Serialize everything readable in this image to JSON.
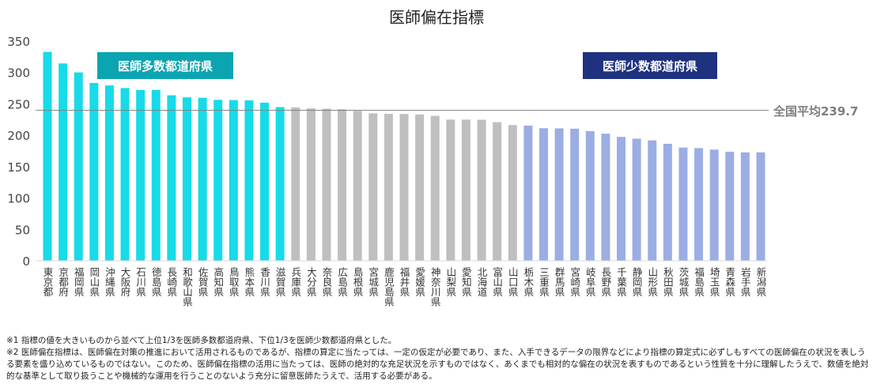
{
  "chart_data": {
    "type": "bar",
    "title": "医師偏在指標",
    "ylim": [
      0,
      350
    ],
    "yticks": [
      0,
      50,
      100,
      150,
      200,
      250,
      300,
      350
    ],
    "categories": [
      "東京都",
      "京都府",
      "福岡県",
      "岡山県",
      "沖縄県",
      "大阪府",
      "石川県",
      "徳島県",
      "長崎県",
      "和歌山県",
      "佐賀県",
      "高知県",
      "鳥取県",
      "熊本県",
      "香川県",
      "滋賀県",
      "兵庫県",
      "大分県",
      "奈良県",
      "広島県",
      "島根県",
      "宮城県",
      "鹿児島県",
      "福井県",
      "愛媛県",
      "神奈川県",
      "山梨県",
      "愛知県",
      "北海道",
      "富山県",
      "山口県",
      "栃木県",
      "三重県",
      "群馬県",
      "宮崎県",
      "岐阜県",
      "長野県",
      "千葉県",
      "静岡県",
      "山形県",
      "秋田県",
      "茨城県",
      "福島県",
      "埼玉県",
      "青森県",
      "岩手県",
      "新潟県"
    ],
    "values": [
      332.8,
      314.4,
      300.1,
      283.2,
      279.3,
      275.2,
      272.2,
      272.2,
      263.7,
      260.3,
      259.7,
      256.4,
      256.0,
      255.5,
      251.9,
      244.8,
      244.4,
      242.8,
      242.3,
      241.4,
      238.7,
      234.9,
      234.1,
      233.8,
      233.1,
      230.9,
      224.9,
      224.9,
      224.7,
      220.9,
      216.2,
      215.3,
      211.2,
      210.9,
      210.4,
      206.6,
      202.5,
      197.3,
      194.5,
      191.8,
      186.3,
      180.3,
      179.5,
      177.1,
      173.6,
      172.7,
      172.7
    ],
    "groups": {
      "many_count": 16,
      "few_count": 16
    },
    "colors": {
      "many": "#17dbe8",
      "middle": "#bfbfbf",
      "few": "#9badE3",
      "avg_line": "#808080"
    },
    "average": {
      "value": 239.7,
      "label": "全国平均239.7"
    },
    "annotations": {
      "many": "医師多数都道府県",
      "few": "医師少数都道府県"
    },
    "grid": false
  },
  "notes": [
    "※1 指標の値を大きいものから並べて上位1/3を医師多数都道府県、下位1/3を医師少数都道府県とした。",
    "※2 医師偏在指標は、医師偏在対策の推進において活用されるものであるが、指標の算定に当たっては、一定の仮定が必要であり、また、入手できるデータの限界などにより指標の算定式に必ずしもすべての医師偏在の状況を表しうる要素を盛り込めているものではない。このため、医師偏在指標の活用に当たっては、医師の絶対的な充足状況を示すものではなく、あくまでも相対的な偏在の状況を表すものであるという性質を十分に理解したうえで、数値を絶対的な基準として取り扱うことや機械的な運用を行うことのないよう充分に留意医師たうえで、活用する必要がある。"
  ]
}
